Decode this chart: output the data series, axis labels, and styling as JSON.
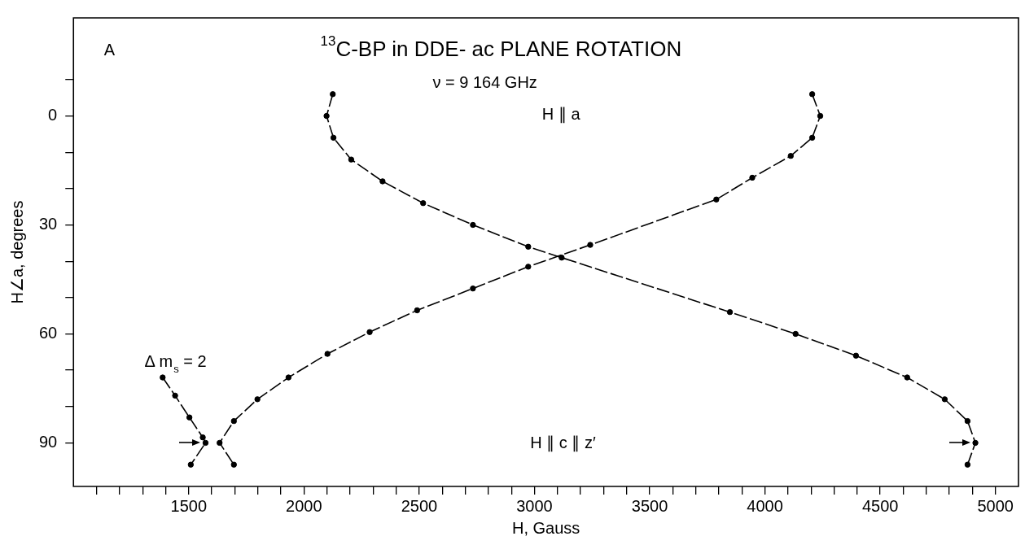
{
  "chart_data": {
    "type": "line",
    "title": "$^{13}$C-BP in DDE- ac PLANE ROTATION",
    "subtitle": "ν = 9 164 GHz",
    "xlabel": "H, Gauss",
    "ylabel": "H∠a, degrees",
    "series": [
      {
        "color": "#000000",
        "x": [
          2125,
          2098,
          2128,
          2205,
          2341,
          2517,
          2733,
          2973,
          3118,
          3848,
          4133,
          4395,
          4617,
          4780,
          4879,
          4913,
          4879
        ],
        "values": [
          -6,
          0,
          6,
          12,
          18,
          24,
          30,
          36,
          39,
          54,
          60,
          66,
          72,
          78,
          84,
          90,
          96
        ]
      },
      {
        "color": "#000000",
        "x": [
          4205,
          4240,
          4205,
          4112,
          3945,
          3789,
          3242,
          2973,
          2733,
          2491,
          2285,
          2102,
          1933,
          1798,
          1696,
          1634,
          1696
        ],
        "values": [
          -6,
          0,
          6,
          11,
          17,
          23,
          35.5,
          41.5,
          47.5,
          53.5,
          59.5,
          65.5,
          72,
          78,
          84,
          90,
          96
        ]
      },
      {
        "color": "#000000",
        "x": [
          1387,
          1441,
          1503,
          1561,
          1573,
          1509
        ],
        "values": [
          72,
          77,
          83,
          88.5,
          90,
          96
        ]
      }
    ],
    "xlim": [
      1000,
      5100
    ],
    "ylim": [
      102,
      -27
    ],
    "xticks": [
      {
        "value": 1100,
        "label": null
      },
      {
        "value": 1200,
        "label": null
      },
      {
        "value": 1300,
        "label": null
      },
      {
        "value": 1400,
        "label": null
      },
      1500,
      {
        "value": 1600,
        "label": null
      },
      {
        "value": 1700,
        "label": null
      },
      {
        "value": 1800,
        "label": null
      },
      {
        "value": 1900,
        "label": null
      },
      2000,
      {
        "value": 2100,
        "label": null
      },
      {
        "value": 2200,
        "label": null
      },
      {
        "value": 2300,
        "label": null
      },
      {
        "value": 2400,
        "label": null
      },
      2500,
      {
        "value": 2600,
        "label": null
      },
      {
        "value": 2700,
        "label": null
      },
      {
        "value": 2800,
        "label": null
      },
      {
        "value": 2900,
        "label": null
      },
      3000,
      {
        "value": 3100,
        "label": null
      },
      {
        "value": 3200,
        "label": null
      },
      {
        "value": 3300,
        "label": null
      },
      {
        "value": 3400,
        "label": null
      },
      3500,
      {
        "value": 3600,
        "label": null
      },
      {
        "value": 3700,
        "label": null
      },
      {
        "value": 3800,
        "label": null
      },
      {
        "value": 3900,
        "label": null
      },
      4000,
      {
        "value": 4100,
        "label": null
      },
      {
        "value": 4200,
        "label": null
      },
      {
        "value": 4300,
        "label": null
      },
      {
        "value": 4400,
        "label": null
      },
      4500,
      {
        "value": 4600,
        "label": null
      },
      {
        "value": 4700,
        "label": null
      },
      {
        "value": 4800,
        "label": null
      },
      {
        "value": 4900,
        "label": null
      },
      5000
    ],
    "yticks": [
      {
        "value": -10,
        "label": null
      },
      0,
      {
        "value": 10,
        "label": null
      },
      {
        "value": 20,
        "label": null
      },
      30,
      {
        "value": 40,
        "label": null
      },
      {
        "value": 50,
        "label": null
      },
      60,
      {
        "value": 70,
        "label": null
      },
      {
        "value": 80,
        "label": null
      },
      90
    ],
    "annotations": [
      "A",
      "H ∥ a",
      "H ∥ c ∥ z′",
      "Δ m$_{s}$ = 2"
    ],
    "grid": false,
    "legend": false,
    "marker": "circle",
    "line_style": "dashed"
  }
}
